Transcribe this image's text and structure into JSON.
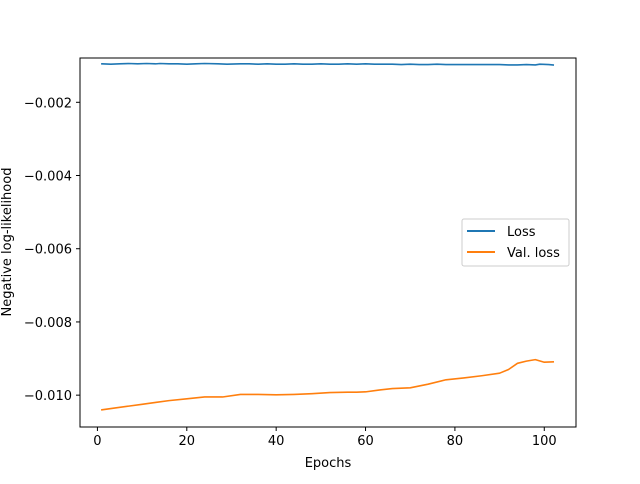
{
  "chart_data": {
    "type": "line",
    "title": "",
    "xlabel": "Epochs",
    "ylabel": "Negative log-likelihood",
    "xlim": [
      -3.9,
      107.1
    ],
    "ylim": [
      -0.01087,
      -0.00079
    ],
    "xticks": [
      0,
      20,
      40,
      60,
      80,
      100
    ],
    "xtick_labels": [
      "0",
      "20",
      "40",
      "60",
      "80",
      "100"
    ],
    "yticks": [
      -0.002,
      -0.004,
      -0.006,
      -0.008,
      -0.01
    ],
    "ytick_labels": [
      "−0.002",
      "−0.004",
      "−0.006",
      "−0.008",
      "−0.010"
    ],
    "grid": false,
    "legend_position": "center-right",
    "series": [
      {
        "name": "Loss",
        "color": "#1f77b4",
        "points": [
          [
            1,
            -0.00095
          ],
          [
            3,
            -0.00096
          ],
          [
            5,
            -0.00095
          ],
          [
            7,
            -0.00094
          ],
          [
            9,
            -0.00095
          ],
          [
            11,
            -0.00094
          ],
          [
            13,
            -0.00095
          ],
          [
            14,
            -0.00094
          ],
          [
            16,
            -0.00095
          ],
          [
            18,
            -0.00095
          ],
          [
            20,
            -0.00096
          ],
          [
            22,
            -0.00095
          ],
          [
            24,
            -0.00094
          ],
          [
            27,
            -0.00095
          ],
          [
            29,
            -0.00096
          ],
          [
            32,
            -0.00095
          ],
          [
            34,
            -0.00095
          ],
          [
            36,
            -0.00096
          ],
          [
            38,
            -0.00095
          ],
          [
            40,
            -0.00096
          ],
          [
            42,
            -0.00096
          ],
          [
            44,
            -0.00095
          ],
          [
            46,
            -0.00096
          ],
          [
            48,
            -0.00096
          ],
          [
            50,
            -0.00095
          ],
          [
            52,
            -0.00096
          ],
          [
            54,
            -0.00096
          ],
          [
            56,
            -0.00095
          ],
          [
            58,
            -0.00096
          ],
          [
            60,
            -0.00095
          ],
          [
            62,
            -0.00096
          ],
          [
            64,
            -0.00096
          ],
          [
            66,
            -0.00096
          ],
          [
            68,
            -0.00097
          ],
          [
            70,
            -0.00096
          ],
          [
            72,
            -0.00097
          ],
          [
            74,
            -0.00097
          ],
          [
            76,
            -0.00096
          ],
          [
            78,
            -0.00097
          ],
          [
            80,
            -0.00097
          ],
          [
            82,
            -0.00097
          ],
          [
            84,
            -0.00097
          ],
          [
            86,
            -0.00097
          ],
          [
            88,
            -0.00097
          ],
          [
            90,
            -0.00097
          ],
          [
            92,
            -0.00098
          ],
          [
            94,
            -0.00098
          ],
          [
            96,
            -0.00097
          ],
          [
            98,
            -0.00098
          ],
          [
            99,
            -0.00096
          ],
          [
            101,
            -0.00097
          ],
          [
            102,
            -0.00098
          ]
        ]
      },
      {
        "name": "Val. loss",
        "color": "#ff7f0e",
        "points": [
          [
            1,
            -0.0104
          ],
          [
            4,
            -0.01035
          ],
          [
            7,
            -0.0103
          ],
          [
            10,
            -0.01025
          ],
          [
            13,
            -0.0102
          ],
          [
            16,
            -0.01015
          ],
          [
            20,
            -0.0101
          ],
          [
            24,
            -0.01005
          ],
          [
            28,
            -0.01005
          ],
          [
            32,
            -0.00998
          ],
          [
            36,
            -0.00998
          ],
          [
            40,
            -0.00999
          ],
          [
            44,
            -0.00998
          ],
          [
            48,
            -0.00996
          ],
          [
            52,
            -0.00993
          ],
          [
            56,
            -0.00992
          ],
          [
            58,
            -0.00992
          ],
          [
            60,
            -0.00991
          ],
          [
            63,
            -0.00986
          ],
          [
            66,
            -0.00982
          ],
          [
            70,
            -0.0098
          ],
          [
            74,
            -0.0097
          ],
          [
            78,
            -0.00958
          ],
          [
            82,
            -0.00953
          ],
          [
            86,
            -0.00947
          ],
          [
            90,
            -0.0094
          ],
          [
            92,
            -0.0093
          ],
          [
            94,
            -0.00913
          ],
          [
            96,
            -0.00907
          ],
          [
            98,
            -0.00903
          ],
          [
            100,
            -0.0091
          ],
          [
            102,
            -0.00909
          ]
        ]
      }
    ]
  }
}
